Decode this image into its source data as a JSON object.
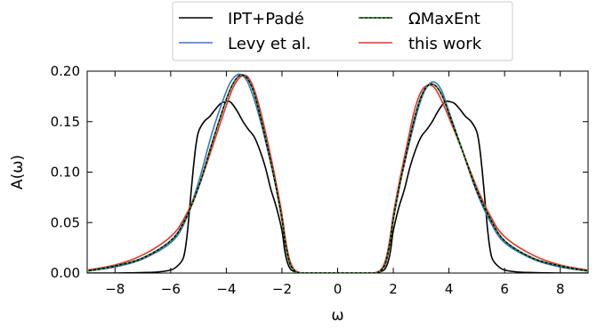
{
  "chart_data": {
    "type": "line",
    "title": "",
    "xlabel": "ω",
    "ylabel": "A(ω)",
    "xlim": [
      -9,
      9
    ],
    "ylim": [
      0,
      0.2
    ],
    "xticks": [
      -8,
      -6,
      -4,
      -2,
      0,
      2,
      4,
      6,
      8
    ],
    "xtick_labels": [
      "−8",
      "−6",
      "−4",
      "−2",
      "0",
      "2",
      "4",
      "6",
      "8"
    ],
    "yticks": [
      0.0,
      0.05,
      0.1,
      0.15,
      0.2
    ],
    "ytick_labels": [
      "0.00",
      "0.05",
      "0.10",
      "0.15",
      "0.20"
    ],
    "grid": false,
    "legend_position": "top-center",
    "series": [
      {
        "name": "IPT+Padé",
        "color": "#000000",
        "style": "solid",
        "x": [
          -9,
          -8,
          -7,
          -6.5,
          -6,
          -5.8,
          -5.6,
          -5.5,
          -5.4,
          -5.3,
          -5.2,
          -5.1,
          -5.0,
          -4.8,
          -4.6,
          -4.4,
          -4.2,
          -4.0,
          -3.9,
          -3.8,
          -3.6,
          -3.4,
          -3.2,
          -3.0,
          -2.8,
          -2.6,
          -2.4,
          -2.2,
          -2.0,
          -1.9,
          -1.8,
          -1.7,
          -1.6,
          -1.5,
          -1.4,
          -1.3,
          -1.0,
          0,
          1.0,
          1.3,
          1.4,
          1.5,
          1.6,
          1.7,
          1.8,
          1.9,
          2.0,
          2.2,
          2.4,
          2.6,
          2.8,
          3.0,
          3.2,
          3.4,
          3.6,
          3.8,
          3.9,
          4.0,
          4.2,
          4.4,
          4.6,
          4.8,
          5.0,
          5.1,
          5.2,
          5.3,
          5.4,
          5.5,
          5.6,
          5.8,
          6.0,
          6.5,
          7.0,
          8.0,
          9.0
        ],
        "y": [
          0.0,
          0.0,
          0.0005,
          0.001,
          0.003,
          0.006,
          0.012,
          0.02,
          0.04,
          0.07,
          0.1,
          0.125,
          0.14,
          0.15,
          0.155,
          0.162,
          0.168,
          0.17,
          0.17,
          0.168,
          0.16,
          0.15,
          0.142,
          0.135,
          0.122,
          0.105,
          0.083,
          0.065,
          0.042,
          0.022,
          0.01,
          0.004,
          0.002,
          0.001,
          0.0,
          0.0,
          0.0,
          0.0,
          0.0,
          0.0,
          0.0,
          0.001,
          0.002,
          0.004,
          0.01,
          0.022,
          0.042,
          0.065,
          0.083,
          0.105,
          0.122,
          0.135,
          0.142,
          0.15,
          0.16,
          0.168,
          0.17,
          0.17,
          0.168,
          0.162,
          0.155,
          0.15,
          0.14,
          0.125,
          0.1,
          0.07,
          0.04,
          0.02,
          0.012,
          0.006,
          0.003,
          0.001,
          0.0005,
          0.0,
          0.0
        ]
      },
      {
        "name": "Levy et al.",
        "color": "#3b76c4",
        "style": "solid",
        "x": [
          -9,
          -8,
          -7,
          -6,
          -5.5,
          -5,
          -4.5,
          -4,
          -3.75,
          -3.5,
          -3.25,
          -3,
          -2.75,
          -2.5,
          -2.25,
          -2,
          -1.9,
          -1.8,
          -1.7,
          -1.6,
          -1.5,
          -1.3,
          -1.0,
          0,
          1.0,
          1.3,
          1.5,
          1.6,
          1.7,
          1.8,
          1.9,
          2.0,
          2.25,
          2.5,
          2.75,
          3.0,
          3.25,
          3.5,
          3.75,
          4.0,
          4.5,
          5.0,
          5.5,
          6.0,
          7.0,
          8.0,
          9.0
        ],
        "y": [
          0.002,
          0.006,
          0.014,
          0.03,
          0.05,
          0.09,
          0.14,
          0.18,
          0.193,
          0.197,
          0.19,
          0.172,
          0.148,
          0.12,
          0.09,
          0.055,
          0.035,
          0.02,
          0.01,
          0.005,
          0.002,
          0.0,
          0.0,
          0.0,
          0.0,
          0.0,
          0.002,
          0.005,
          0.01,
          0.02,
          0.035,
          0.055,
          0.09,
          0.12,
          0.148,
          0.172,
          0.186,
          0.189,
          0.18,
          0.16,
          0.12,
          0.08,
          0.05,
          0.03,
          0.014,
          0.006,
          0.002
        ]
      },
      {
        "name": "ΩMaxEnt",
        "color": "#2ca02c",
        "style": "dotted",
        "x": [
          -9,
          -8,
          -7,
          -6,
          -5.5,
          -5,
          -4.5,
          -4,
          -3.75,
          -3.5,
          -3.25,
          -3,
          -2.75,
          -2.5,
          -2.25,
          -2,
          -1.9,
          -1.8,
          -1.7,
          -1.6,
          -1.5,
          -1.3,
          -1.0,
          0,
          1.0,
          1.3,
          1.5,
          1.6,
          1.7,
          1.8,
          1.9,
          2.0,
          2.25,
          2.5,
          2.75,
          3.0,
          3.25,
          3.5,
          3.75,
          4.0,
          4.5,
          5.0,
          5.5,
          6.0,
          7.0,
          8.0,
          9.0
        ],
        "y": [
          0.002,
          0.007,
          0.015,
          0.032,
          0.052,
          0.085,
          0.13,
          0.172,
          0.188,
          0.196,
          0.193,
          0.178,
          0.152,
          0.122,
          0.09,
          0.053,
          0.033,
          0.018,
          0.008,
          0.004,
          0.001,
          0.0,
          0.0,
          0.0,
          0.0,
          0.0,
          0.001,
          0.004,
          0.008,
          0.018,
          0.033,
          0.053,
          0.09,
          0.122,
          0.152,
          0.175,
          0.186,
          0.186,
          0.176,
          0.158,
          0.12,
          0.082,
          0.053,
          0.032,
          0.015,
          0.007,
          0.002
        ]
      },
      {
        "name": "this work",
        "color": "#e8352e",
        "style": "solid",
        "x": [
          -9,
          -8,
          -7,
          -6,
          -5.5,
          -5,
          -4.5,
          -4,
          -3.75,
          -3.5,
          -3.25,
          -3,
          -2.75,
          -2.5,
          -2.25,
          -2,
          -1.9,
          -1.8,
          -1.7,
          -1.6,
          -1.5,
          -1.3,
          -1.0,
          0,
          1.0,
          1.3,
          1.5,
          1.6,
          1.7,
          1.8,
          1.9,
          2.0,
          2.25,
          2.5,
          2.75,
          3.0,
          3.25,
          3.5,
          3.75,
          4.0,
          4.5,
          5.0,
          5.5,
          6.0,
          7.0,
          8.0,
          9.0
        ],
        "y": [
          0.003,
          0.008,
          0.018,
          0.036,
          0.055,
          0.085,
          0.125,
          0.166,
          0.184,
          0.194,
          0.195,
          0.182,
          0.158,
          0.128,
          0.095,
          0.058,
          0.038,
          0.022,
          0.011,
          0.005,
          0.002,
          0.0,
          0.0,
          0.0,
          0.0,
          0.0,
          0.002,
          0.005,
          0.011,
          0.022,
          0.038,
          0.058,
          0.095,
          0.128,
          0.16,
          0.18,
          0.186,
          0.183,
          0.17,
          0.154,
          0.12,
          0.085,
          0.056,
          0.036,
          0.018,
          0.008,
          0.003
        ]
      }
    ]
  }
}
